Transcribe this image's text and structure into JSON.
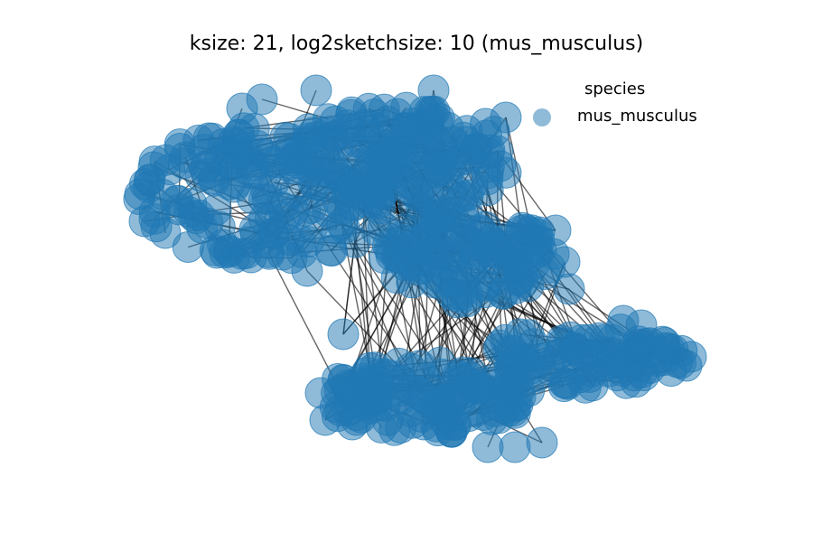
{
  "figure": {
    "title": "ksize: 21, log2sketchsize: 10 (mus_musculus)"
  },
  "legend": {
    "title": "species",
    "entries": [
      {
        "label": "mus_musculus",
        "color": "#1f77b4"
      }
    ]
  },
  "graph": {
    "layout": "force-directed network",
    "node_color": "#1f77b4",
    "node_alpha": 0.5,
    "edge_color": "#000000",
    "edge_alpha": 0.6,
    "clusters": 4
  }
}
